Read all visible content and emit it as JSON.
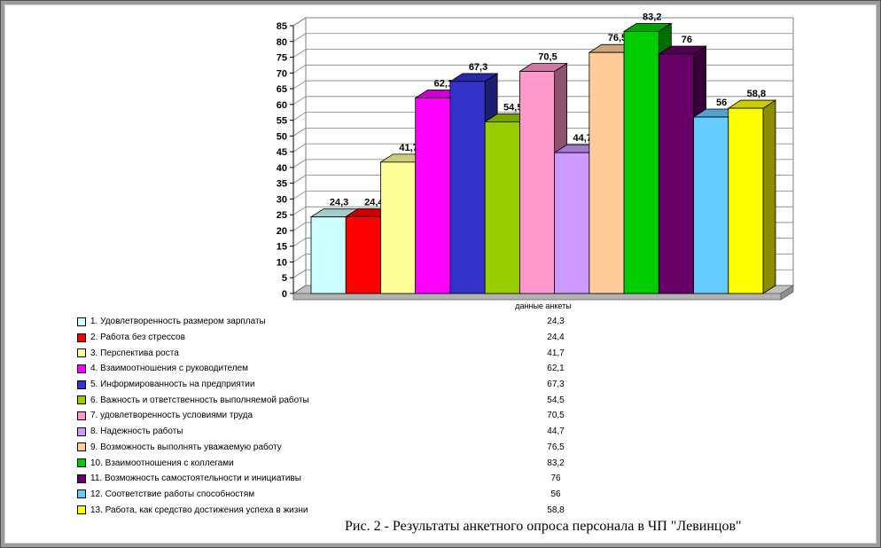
{
  "figure": {
    "caption": "Рис. 2 - Результаты анкетного опроса персонала в ЧП \"Левинцов\""
  },
  "chart_data": {
    "type": "bar",
    "projection": "3d-column",
    "title": "",
    "xlabel": "данные анкеты",
    "ylabel": "",
    "ylim": [
      0,
      85
    ],
    "ytick_step": 5,
    "yticks": [
      0,
      5,
      10,
      15,
      20,
      25,
      30,
      35,
      40,
      45,
      50,
      55,
      60,
      65,
      70,
      75,
      80,
      85
    ],
    "grid": true,
    "legend_position": "bottom-left",
    "categories": [
      "1. Удовлетворенность размером зарплаты",
      "2. Работа без стрессов",
      "3. Перспектива роста",
      "4. Взаимоотношения с руководителем",
      "5. Информированность на предприятии",
      "6. Важность и ответственность выполняемой работы",
      "7. удовлетворенность условиями труда",
      "8. Надежность работы",
      "9. Возможность выполнять уважаемую работу",
      "10. Взаимоотношения с коллегами",
      "11. Возможность самостоятельности и инициативы",
      "12. Соответствие работы способностям",
      "13. Работа, как средство достижения успеха в жизни"
    ],
    "values": [
      24.3,
      24.4,
      41.7,
      62.1,
      67.3,
      54.5,
      70.5,
      44.7,
      76.5,
      83.2,
      76,
      56,
      58.8
    ],
    "value_labels": [
      "24,3",
      "24,4",
      "41,7",
      "62,1",
      "67,3",
      "54,5",
      "70,5",
      "44,7",
      "76,5",
      "83,2",
      "76",
      "56",
      "58,8"
    ],
    "colors": [
      "#CCFFFF",
      "#FF0000",
      "#FFFF99",
      "#FF00FF",
      "#3333CC",
      "#99CC00",
      "#FF99CC",
      "#CC99FF",
      "#FFCC99",
      "#00CC00",
      "#660066",
      "#66CCFF",
      "#FFFF00"
    ],
    "wall_color": "#FFFFFF",
    "floor_color": "#C0C0C0",
    "gridline_color": "#808080"
  }
}
